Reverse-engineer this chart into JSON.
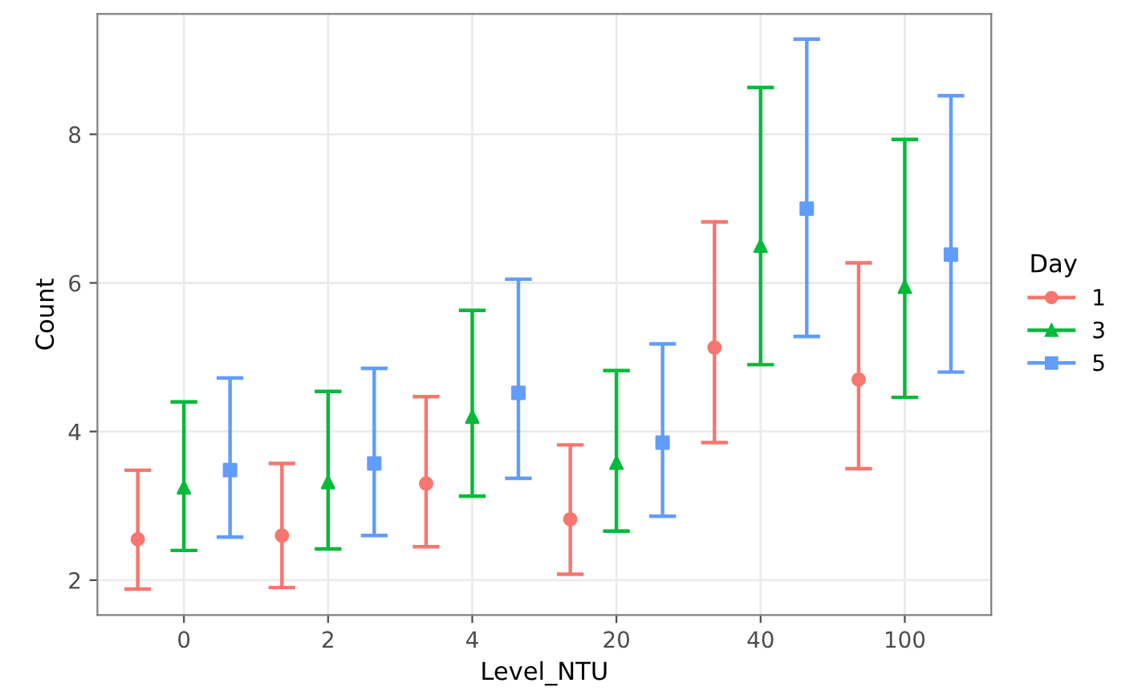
{
  "chart_data": {
    "type": "scatter",
    "xlabel": "Level_NTU",
    "ylabel": "Count",
    "legend_title": "Day",
    "legend": "right",
    "grid": true,
    "categories": [
      "0",
      "2",
      "4",
      "20",
      "40",
      "100"
    ],
    "ylim": [
      1.53,
      9.62
    ],
    "yticks": [
      2,
      4,
      6,
      8
    ],
    "series": [
      {
        "name": "1",
        "color": "#f8766d",
        "marker": "circle",
        "values": [
          2.55,
          2.6,
          3.3,
          2.82,
          5.13,
          4.7
        ],
        "errors": [
          [
            1.88,
            3.48
          ],
          [
            1.9,
            3.57
          ],
          [
            2.45,
            4.47
          ],
          [
            2.08,
            3.82
          ],
          [
            3.85,
            6.82
          ],
          [
            3.5,
            6.27
          ]
        ]
      },
      {
        "name": "3",
        "color": "#00ba38",
        "marker": "triangle",
        "values": [
          3.25,
          3.32,
          4.2,
          3.58,
          6.5,
          5.95
        ],
        "errors": [
          [
            2.4,
            4.4
          ],
          [
            2.42,
            4.54
          ],
          [
            3.13,
            5.63
          ],
          [
            2.66,
            4.82
          ],
          [
            4.9,
            8.63
          ],
          [
            4.46,
            7.93
          ]
        ]
      },
      {
        "name": "5",
        "color": "#619cff",
        "marker": "square",
        "values": [
          3.48,
          3.57,
          4.52,
          3.85,
          7.0,
          6.38
        ],
        "errors": [
          [
            2.58,
            4.72
          ],
          [
            2.6,
            4.85
          ],
          [
            3.37,
            6.05
          ],
          [
            2.86,
            5.18
          ],
          [
            5.28,
            9.28
          ],
          [
            4.8,
            8.52
          ]
        ]
      }
    ]
  }
}
